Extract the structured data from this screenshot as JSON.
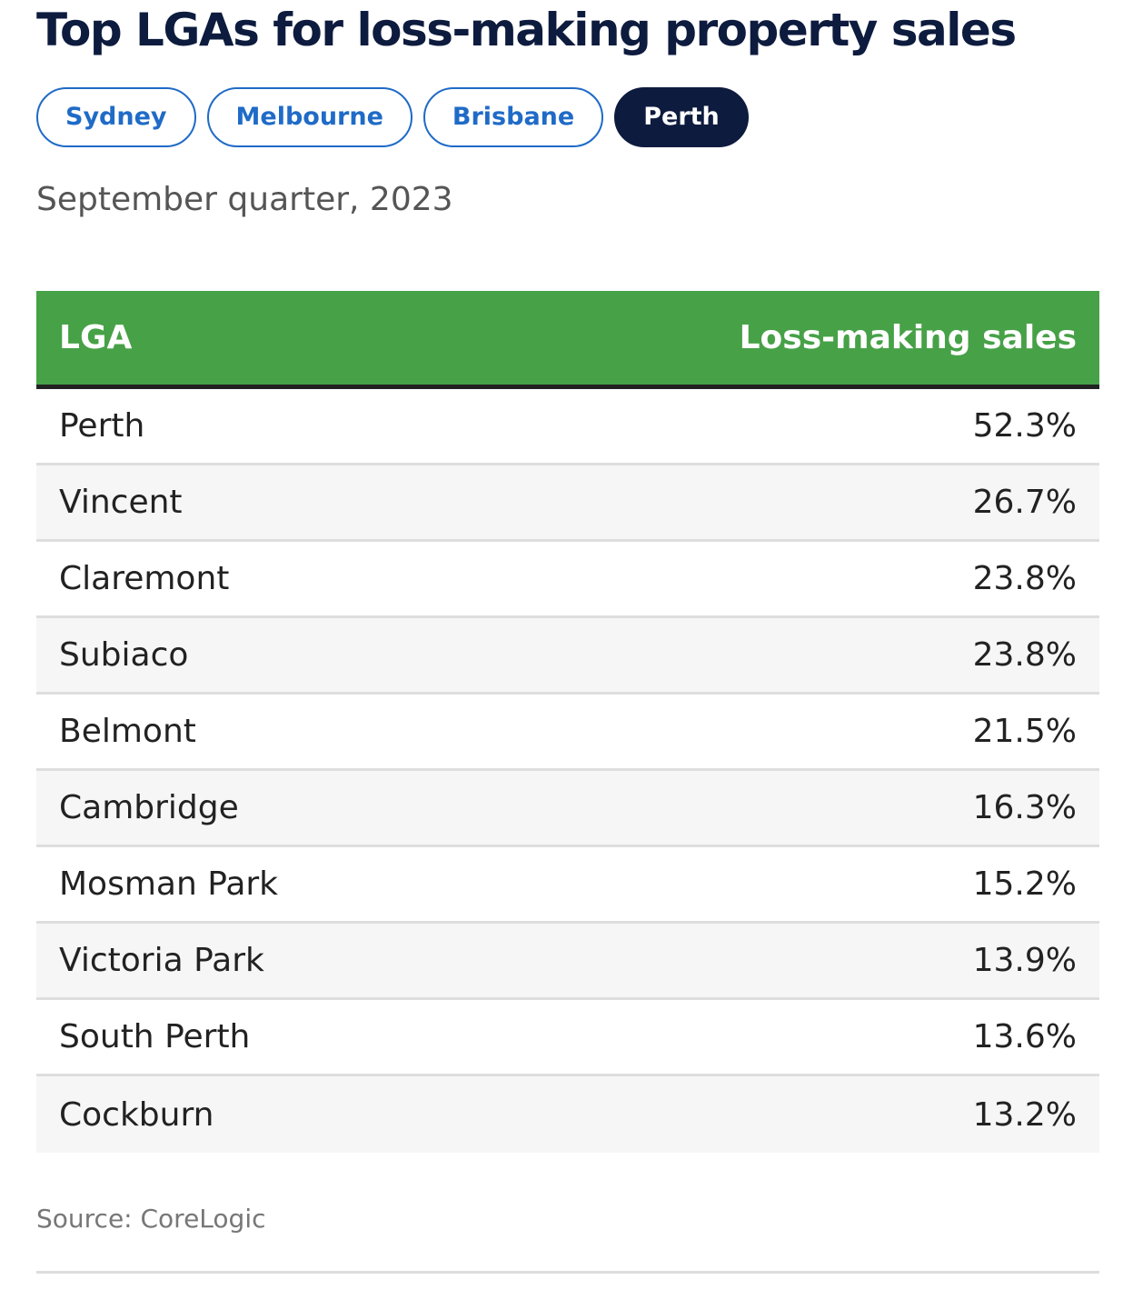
{
  "title": "Top LGAs for loss-making property sales",
  "tabs": [
    {
      "label": "Sydney",
      "active": false
    },
    {
      "label": "Melbourne",
      "active": false
    },
    {
      "label": "Brisbane",
      "active": false
    },
    {
      "label": "Perth",
      "active": true
    }
  ],
  "subtitle": "September quarter, 2023",
  "colors": {
    "header_green": "#47a147",
    "active_tab": "#0d1b3e",
    "tab_blue": "#1f6bc7"
  },
  "source": "Source: CoreLogic",
  "chart_data": {
    "type": "table",
    "title": "Top LGAs for loss-making property sales",
    "subtitle": "September quarter, 2023",
    "columns": [
      "LGA",
      "Loss-making sales"
    ],
    "rows": [
      {
        "lga": "Perth",
        "value": "52.3%"
      },
      {
        "lga": "Vincent",
        "value": "26.7%"
      },
      {
        "lga": "Claremont",
        "value": "23.8%"
      },
      {
        "lga": "Subiaco",
        "value": "23.8%"
      },
      {
        "lga": "Belmont",
        "value": "21.5%"
      },
      {
        "lga": "Cambridge",
        "value": "16.3%"
      },
      {
        "lga": "Mosman Park",
        "value": "15.2%"
      },
      {
        "lga": "Victoria Park",
        "value": "13.9%"
      },
      {
        "lga": "South Perth",
        "value": "13.6%"
      },
      {
        "lga": "Cockburn",
        "value": "13.2%"
      }
    ]
  }
}
